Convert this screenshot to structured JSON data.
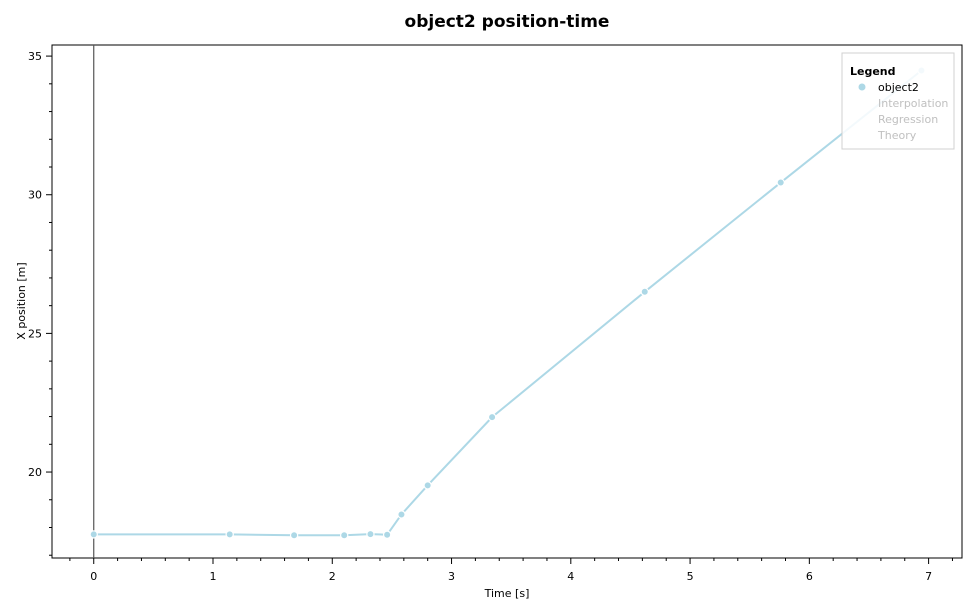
{
  "chart_data": {
    "type": "line",
    "title": "object2 position-time",
    "xlabel": "Time [s]",
    "ylabel": "X position [m]",
    "xlim": [
      -0.35,
      7.28
    ],
    "ylim": [
      16.9,
      35.4
    ],
    "xticks": [
      0,
      1,
      2,
      3,
      4,
      5,
      6,
      7
    ],
    "yticks": [
      20,
      25,
      30,
      35
    ],
    "xtick_labels": [
      "0",
      "1",
      "2",
      "3",
      "4",
      "5",
      "6",
      "7"
    ],
    "ytick_labels": [
      "20",
      "25",
      "30",
      "35"
    ],
    "series": [
      {
        "name": "object2",
        "color": "#add8e6",
        "x": [
          0.0,
          1.14,
          1.68,
          2.1,
          2.32,
          2.46,
          2.58,
          2.8,
          3.34,
          4.62,
          5.76,
          6.94
        ],
        "y": [
          17.75,
          17.75,
          17.72,
          17.72,
          17.76,
          17.74,
          18.47,
          19.52,
          21.98,
          26.5,
          30.44,
          34.48
        ]
      }
    ],
    "grid": false,
    "legend": {
      "title": "Legend",
      "position": "top-right",
      "entries": [
        {
          "label": "object2",
          "active": true,
          "color": "#add8e6"
        },
        {
          "label": "Interpolation",
          "active": false,
          "color": "#c8c8c8"
        },
        {
          "label": "Regression",
          "active": false,
          "color": "#c8c8c8"
        },
        {
          "label": "Theory",
          "active": false,
          "color": "#c8c8c8"
        }
      ]
    },
    "vertical_marker_x": 0.0
  }
}
